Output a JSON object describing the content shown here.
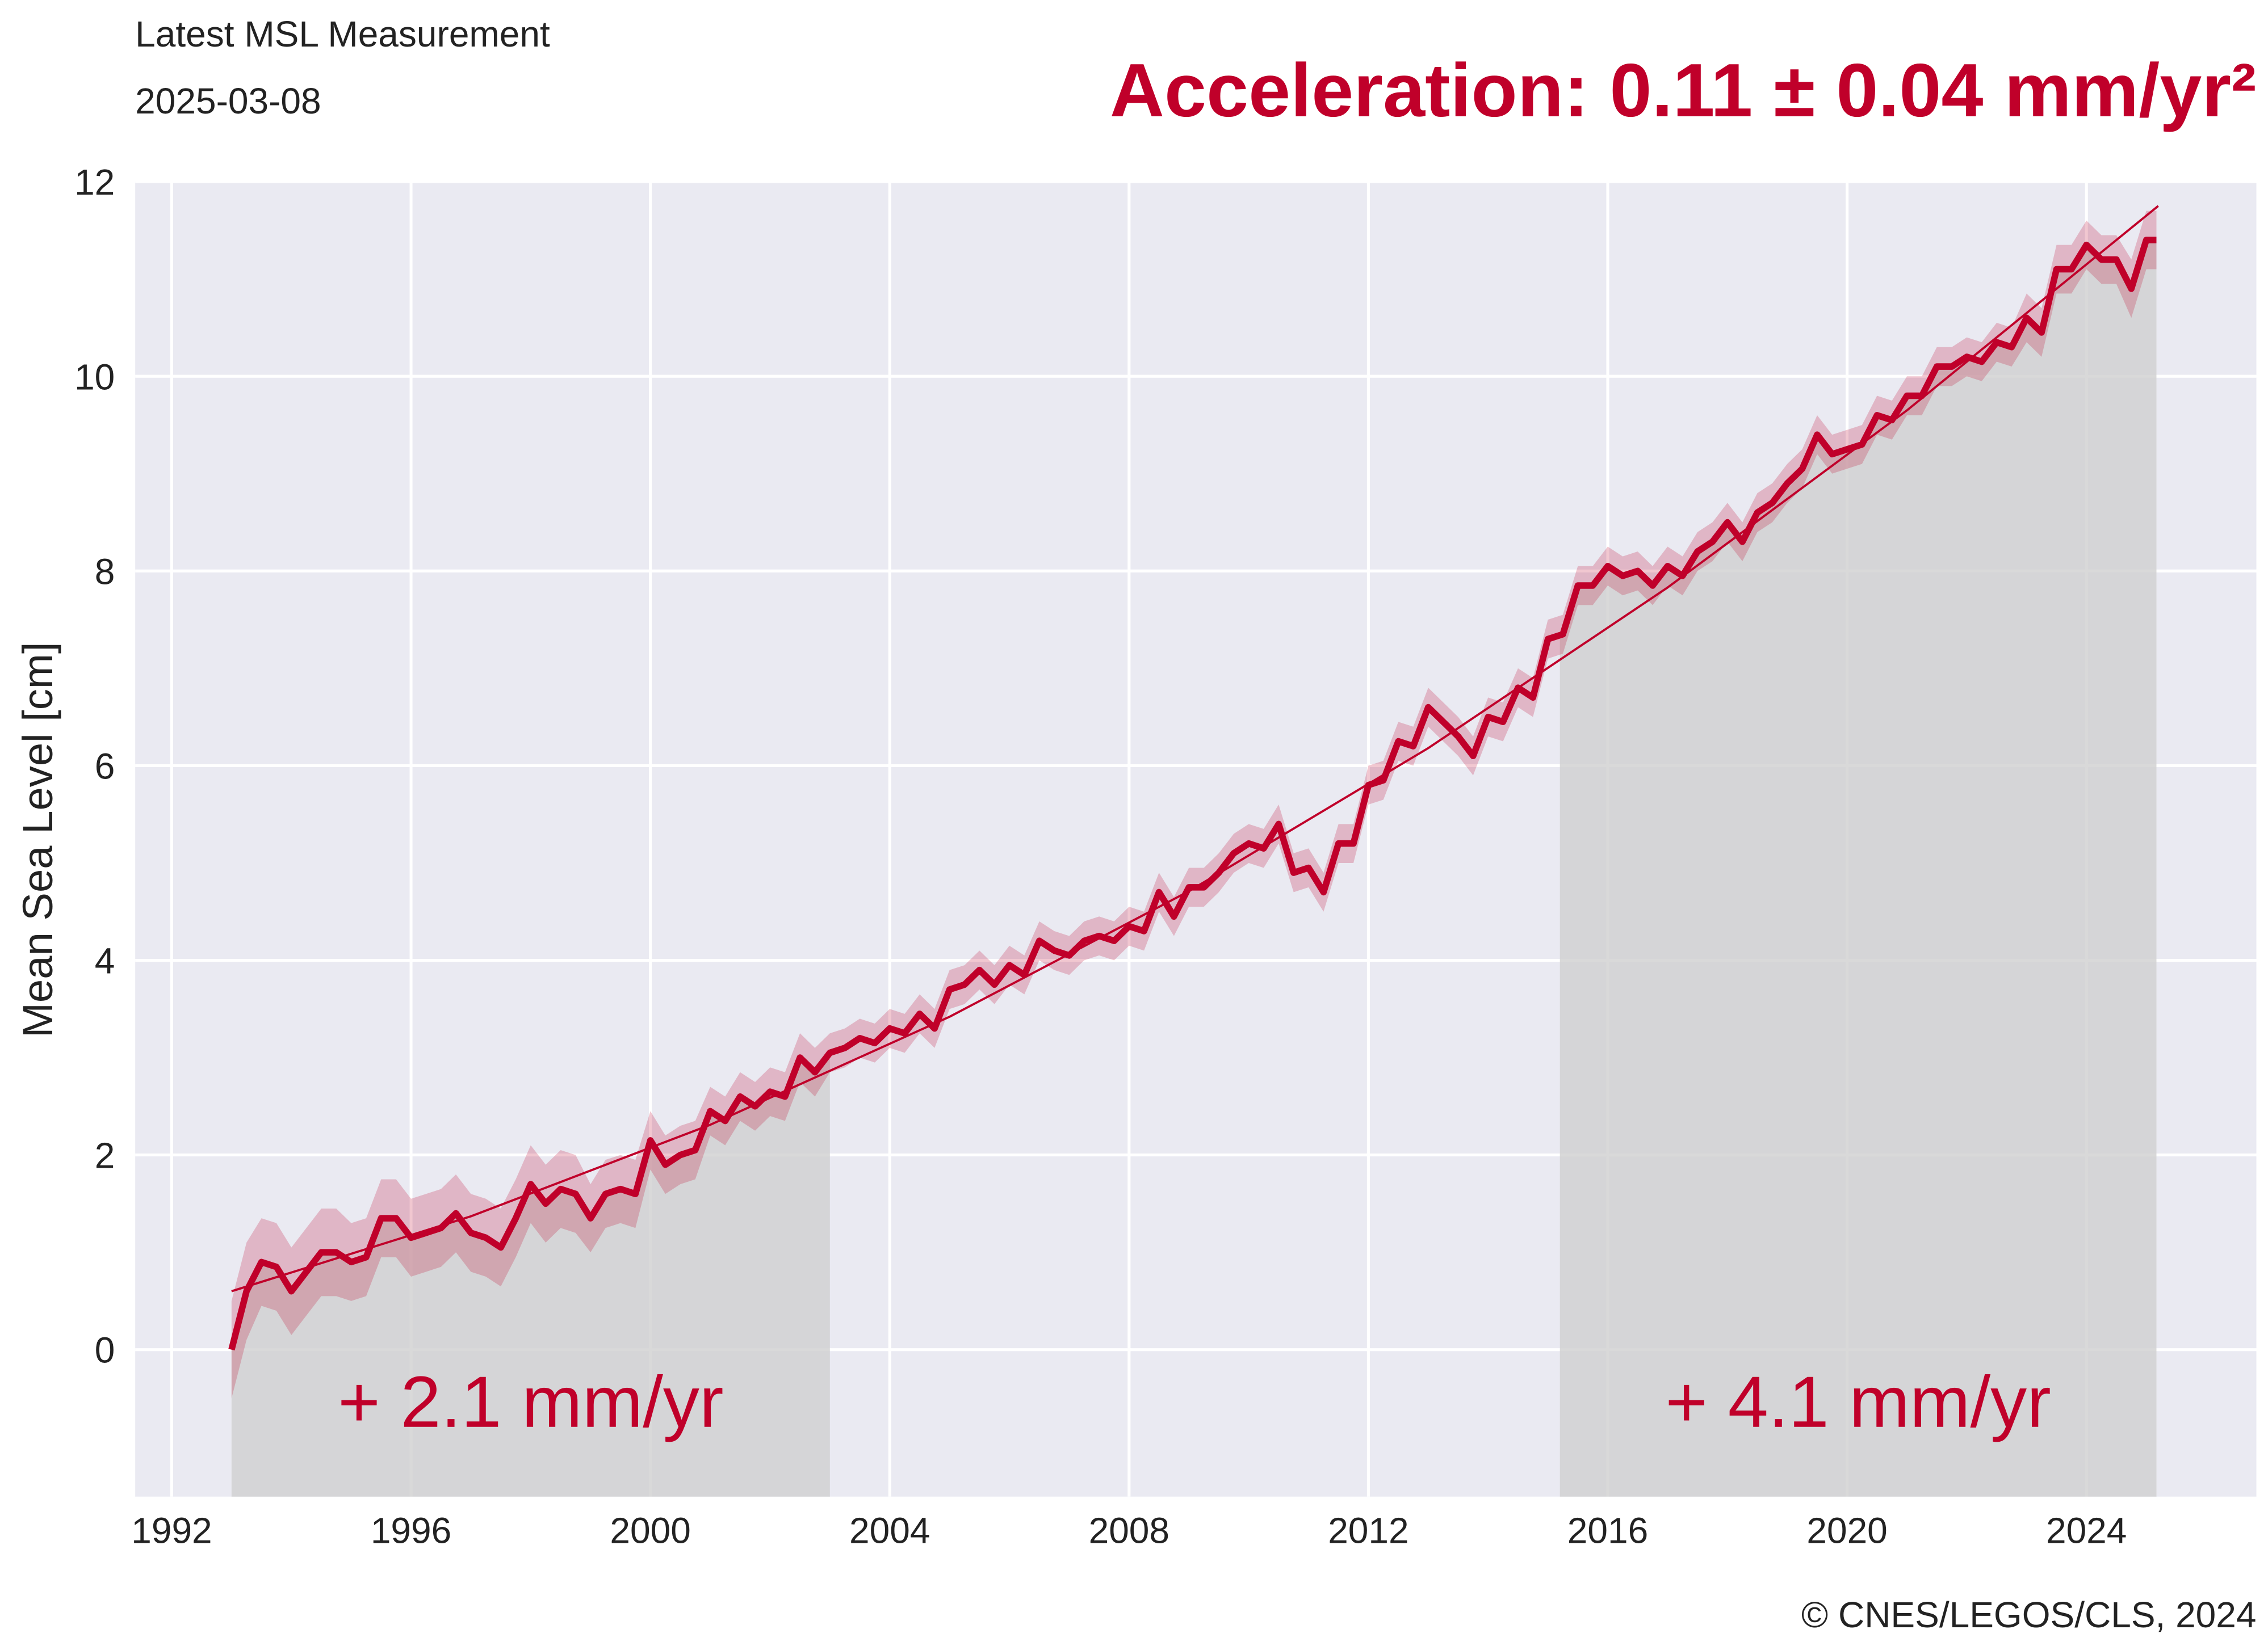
{
  "chart_data": {
    "type": "line",
    "header_title": "Latest MSL Measurement",
    "header_date": "2025-03-08",
    "title": "Acceleration: 0.11 ± 0.04 mm/yr²",
    "y_label": "Mean Sea Level [cm]",
    "credit": "© CNES/LEGOS/CLS, 2024",
    "xlim": [
      1991.39,
      2026.84
    ],
    "ylim": [
      -1.51,
      12
    ],
    "xticks": [
      1992,
      1996,
      2000,
      2004,
      2008,
      2012,
      2016,
      2020,
      2024
    ],
    "yticks": [
      0,
      2,
      4,
      6,
      8,
      10,
      12
    ],
    "grid": true,
    "series": [
      {
        "color": "#c0002a",
        "x": [
          1993.0,
          1993.25,
          1993.5,
          1993.75,
          1994.0,
          1994.25,
          1994.5,
          1994.75,
          1995.0,
          1995.25,
          1995.5,
          1995.75,
          1996.0,
          1996.25,
          1996.5,
          1996.75,
          1997.0,
          1997.25,
          1997.5,
          1997.75,
          1998.0,
          1998.25,
          1998.5,
          1998.75,
          1999.0,
          1999.25,
          1999.5,
          1999.75,
          2000.0,
          2000.25,
          2000.5,
          2000.75,
          2001.0,
          2001.25,
          2001.5,
          2001.75,
          2002.0,
          2002.25,
          2002.5,
          2002.75,
          2003.0,
          2003.25,
          2003.5,
          2003.75,
          2004.0,
          2004.25,
          2004.5,
          2004.75,
          2005.0,
          2005.25,
          2005.5,
          2005.75,
          2006.0,
          2006.25,
          2006.5,
          2006.75,
          2007.0,
          2007.25,
          2007.5,
          2007.75,
          2008.0,
          2008.25,
          2008.5,
          2008.75,
          2009.0,
          2009.25,
          2009.5,
          2009.75,
          2010.0,
          2010.25,
          2010.5,
          2010.75,
          2011.0,
          2011.25,
          2011.5,
          2011.75,
          2012.0,
          2012.25,
          2012.5,
          2012.75,
          2013.0,
          2013.25,
          2013.5,
          2013.75,
          2014.0,
          2014.25,
          2014.5,
          2014.75,
          2015.0,
          2015.25,
          2015.5,
          2015.75,
          2016.0,
          2016.25,
          2016.5,
          2016.75,
          2017.0,
          2017.25,
          2017.5,
          2017.75,
          2018.0,
          2018.25,
          2018.5,
          2018.75,
          2019.0,
          2019.25,
          2019.5,
          2019.75,
          2020.0,
          2020.25,
          2020.5,
          2020.75,
          2021.0,
          2021.25,
          2021.5,
          2021.75,
          2022.0,
          2022.25,
          2022.5,
          2022.75,
          2023.0,
          2023.25,
          2023.5,
          2023.75,
          2024.0,
          2024.25,
          2024.5,
          2024.75,
          2025.0,
          2025.17
        ],
        "values": [
          0.0,
          0.6,
          0.9,
          0.85,
          0.6,
          0.8,
          1.0,
          1.0,
          0.9,
          0.95,
          1.35,
          1.35,
          1.15,
          1.2,
          1.25,
          1.4,
          1.2,
          1.15,
          1.05,
          1.35,
          1.7,
          1.5,
          1.65,
          1.6,
          1.35,
          1.6,
          1.65,
          1.6,
          2.15,
          1.9,
          2.0,
          2.05,
          2.45,
          2.35,
          2.6,
          2.5,
          2.65,
          2.6,
          3.0,
          2.85,
          3.05,
          3.1,
          3.2,
          3.15,
          3.3,
          3.25,
          3.45,
          3.3,
          3.7,
          3.75,
          3.9,
          3.75,
          3.95,
          3.85,
          4.2,
          4.1,
          4.05,
          4.2,
          4.25,
          4.2,
          4.35,
          4.3,
          4.7,
          4.45,
          4.75,
          4.75,
          4.9,
          5.1,
          5.2,
          5.15,
          5.4,
          4.9,
          4.95,
          4.7,
          5.2,
          5.2,
          5.8,
          5.85,
          6.25,
          6.2,
          6.6,
          6.45,
          6.3,
          6.1,
          6.5,
          6.45,
          6.8,
          6.7,
          7.3,
          7.35,
          7.85,
          7.85,
          8.05,
          7.95,
          8.0,
          7.85,
          8.05,
          7.95,
          8.2,
          8.3,
          8.5,
          8.3,
          8.6,
          8.7,
          8.9,
          9.05,
          9.4,
          9.2,
          9.25,
          9.3,
          9.6,
          9.55,
          9.8,
          9.8,
          10.1,
          10.1,
          10.2,
          10.15,
          10.35,
          10.3,
          10.6,
          10.45,
          11.1,
          11.1,
          11.35,
          11.2,
          11.2,
          10.9,
          11.4,
          11.4
        ],
        "errors": [
          0.5,
          0.5,
          0.45,
          0.45,
          0.45,
          0.45,
          0.45,
          0.45,
          0.4,
          0.4,
          0.4,
          0.4,
          0.4,
          0.4,
          0.4,
          0.4,
          0.4,
          0.4,
          0.4,
          0.4,
          0.4,
          0.4,
          0.4,
          0.4,
          0.35,
          0.35,
          0.35,
          0.35,
          0.3,
          0.3,
          0.3,
          0.3,
          0.25,
          0.25,
          0.25,
          0.25,
          0.25,
          0.25,
          0.25,
          0.25,
          0.2,
          0.2,
          0.2,
          0.2,
          0.2,
          0.2,
          0.2,
          0.2,
          0.2,
          0.2,
          0.2,
          0.2,
          0.2,
          0.2,
          0.2,
          0.2,
          0.2,
          0.2,
          0.2,
          0.2,
          0.2,
          0.2,
          0.2,
          0.2,
          0.2,
          0.2,
          0.2,
          0.2,
          0.2,
          0.2,
          0.2,
          0.2,
          0.2,
          0.2,
          0.2,
          0.2,
          0.2,
          0.2,
          0.2,
          0.2,
          0.2,
          0.2,
          0.2,
          0.2,
          0.2,
          0.2,
          0.2,
          0.2,
          0.2,
          0.2,
          0.2,
          0.2,
          0.2,
          0.2,
          0.2,
          0.2,
          0.2,
          0.2,
          0.2,
          0.2,
          0.2,
          0.2,
          0.2,
          0.2,
          0.2,
          0.2,
          0.2,
          0.2,
          0.2,
          0.2,
          0.2,
          0.2,
          0.2,
          0.2,
          0.2,
          0.2,
          0.2,
          0.2,
          0.2,
          0.2,
          0.25,
          0.25,
          0.25,
          0.25,
          0.25,
          0.25,
          0.25,
          0.3,
          0.3,
          0.3
        ]
      },
      {
        "color": "#c0002a",
        "x": [
          1993,
          1997,
          2001,
          2005,
          2009,
          2013,
          2017,
          2021,
          2025.2
        ],
        "values": [
          0.6,
          1.37,
          2.31,
          3.42,
          4.71,
          6.18,
          7.83,
          9.65,
          11.75
        ]
      }
    ],
    "spans": [
      {
        "x0": 1993,
        "x1": 2003,
        "label": "+ 2.1 mm/yr"
      },
      {
        "x0": 2015.2,
        "x1": 2025.17,
        "label": "+ 4.1 mm/yr"
      }
    ]
  }
}
